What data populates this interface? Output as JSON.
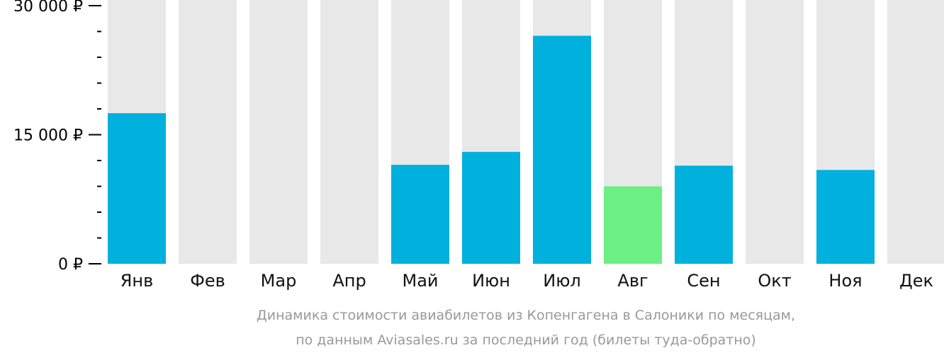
{
  "chart_data": {
    "type": "bar",
    "categories": [
      "Янв",
      "Фев",
      "Мар",
      "Апр",
      "Май",
      "Июн",
      "Июл",
      "Авг",
      "Сен",
      "Окт",
      "Ноя",
      "Дек"
    ],
    "values": [
      17500,
      null,
      null,
      null,
      11500,
      13000,
      26500,
      9000,
      11400,
      null,
      10900,
      null
    ],
    "highlight": [
      false,
      false,
      false,
      false,
      false,
      false,
      false,
      true,
      false,
      false,
      false,
      false
    ],
    "ylim": [
      0,
      30000
    ],
    "y_ticks": [
      0,
      15000,
      30000
    ],
    "y_tick_labels": [
      "0 ₽",
      "15 000 ₽",
      "30 000 ₽"
    ],
    "minor_ticks_between_major": 4,
    "caption_lines": [
      "Динамика стоимости авиабилетов из Копенгагена в Салоники по месяцам,",
      "по данным Aviasales.ru за последний год (билеты туда-обратно)"
    ],
    "colors": {
      "bar": "#00b0dd",
      "bar_highlight": "#6cf084",
      "background_column": "#e8e8e8",
      "axis": "#000000",
      "caption": "#999999"
    }
  }
}
